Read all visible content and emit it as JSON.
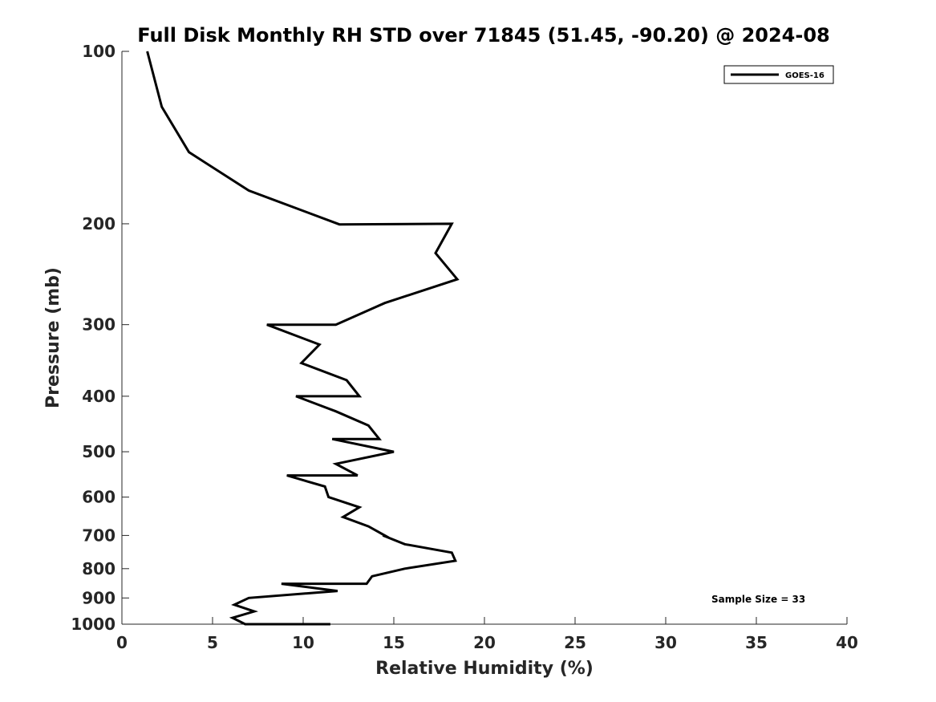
{
  "chart_data": {
    "type": "line",
    "title": "Full Disk Monthly RH STD over 71845 (51.45, -90.20) @ 2024-08",
    "xlabel": "Relative Humidity (%)",
    "ylabel": "Pressure (mb)",
    "xlim": [
      0,
      40
    ],
    "ylim": [
      100,
      1000
    ],
    "yscale": "log",
    "y_reversed": true,
    "grid": false,
    "legend_position": "top-right",
    "xticks": [
      "0",
      "5",
      "10",
      "15",
      "20",
      "25",
      "30",
      "35",
      "40"
    ],
    "yticks": [
      {
        "value": 100,
        "label": "100"
      },
      {
        "value": 200,
        "label": "200"
      },
      {
        "value": 300,
        "label": "300"
      },
      {
        "value": 400,
        "label": "400"
      },
      {
        "value": 500,
        "label": "500"
      },
      {
        "value": 600,
        "label": "600"
      },
      {
        "value": 700,
        "label": "700"
      },
      {
        "value": 800,
        "label": "800"
      },
      {
        "value": 900,
        "label": "900"
      },
      {
        "value": 1000,
        "label": "1000"
      }
    ],
    "series": [
      {
        "name": "GOES-16",
        "color": "#000000",
        "points": [
          [
            1.4,
            100
          ],
          [
            2.2,
            125
          ],
          [
            3.7,
            150
          ],
          [
            7.0,
            175
          ],
          [
            12.0,
            200.5
          ],
          [
            18.2,
            200
          ],
          [
            17.3,
            225
          ],
          [
            18.5,
            250
          ],
          [
            14.5,
            275
          ],
          [
            11.8,
            300
          ],
          [
            8.0,
            300
          ],
          [
            10.9,
            325
          ],
          [
            9.9,
            350
          ],
          [
            12.4,
            375
          ],
          [
            13.1,
            400
          ],
          [
            9.6,
            400
          ],
          [
            11.8,
            425
          ],
          [
            13.6,
            450
          ],
          [
            14.2,
            475
          ],
          [
            11.6,
            475
          ],
          [
            15.0,
            500
          ],
          [
            11.8,
            525
          ],
          [
            13.0,
            550
          ],
          [
            9.1,
            550
          ],
          [
            11.2,
            575
          ],
          [
            11.4,
            600
          ],
          [
            13.1,
            625
          ],
          [
            12.2,
            650
          ],
          [
            13.6,
            675
          ],
          [
            14.5,
            700
          ],
          [
            14.4,
            700
          ],
          [
            15.6,
            725
          ],
          [
            18.2,
            750
          ],
          [
            18.4,
            775
          ],
          [
            15.6,
            800
          ],
          [
            13.8,
            825
          ],
          [
            13.5,
            850
          ],
          [
            8.8,
            850
          ],
          [
            11.9,
            875
          ],
          [
            7.0,
            900
          ],
          [
            6.2,
            925
          ],
          [
            7.3,
            950
          ],
          [
            6.1,
            975
          ],
          [
            6.8,
            1000
          ],
          [
            11.5,
            1000
          ]
        ]
      }
    ],
    "annotations": [
      "Sample Size = 33"
    ]
  }
}
